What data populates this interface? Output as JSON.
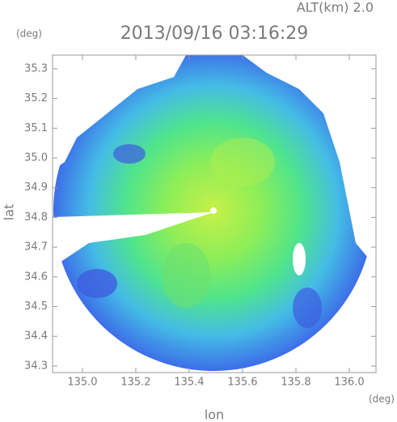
{
  "chart_data": {
    "type": "radar-map",
    "title": "2013/09/16 03:16:29",
    "annotation": "ALT(km) 2.0",
    "y_unit": "(deg)",
    "x_unit": "(deg)",
    "x_label": "lon",
    "y_label": "lat",
    "xlim": [
      134.888,
      136.1
    ],
    "ylim": [
      34.278,
      35.346
    ],
    "xticks": [
      {
        "value": 135,
        "label": "135.0"
      },
      135.2,
      135.4,
      135.6,
      135.8,
      {
        "value": 136,
        "label": "136.0"
      }
    ],
    "yticks": [
      34.3,
      34.4,
      34.5,
      34.6,
      34.7,
      34.8,
      34.9,
      {
        "value": 35,
        "label": "35.0"
      },
      35.1,
      35.2,
      35.3
    ]
  }
}
